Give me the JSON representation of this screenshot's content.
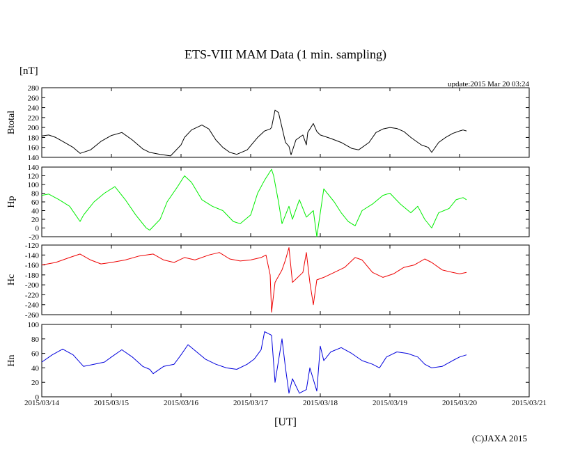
{
  "chart_data": {
    "type": "line",
    "title": "ETS-VIII MAM Data (1 min. sampling)",
    "unit_label": "[nT]",
    "update_label": "update:2015 Mar 20 03:24",
    "xlabel": "[UT]",
    "copyright": "(C)JAXA 2015",
    "x_ticks": [
      "2015/03/14",
      "2015/03/15",
      "2015/03/16",
      "2015/03/17",
      "2015/03/18",
      "2015/03/19",
      "2015/03/20",
      "2015/03/21"
    ],
    "x_range_days": [
      0,
      7
    ],
    "panels": [
      {
        "name": "Btotal",
        "label": "Btotal",
        "color": "#000000",
        "ylim": [
          140,
          280
        ],
        "y_ticks": [
          "280",
          "260",
          "240",
          "220",
          "200",
          "180",
          "160",
          "140"
        ],
        "x": [
          0,
          0.1,
          0.2,
          0.3,
          0.45,
          0.55,
          0.7,
          0.85,
          1.0,
          1.15,
          1.3,
          1.45,
          1.55,
          1.7,
          1.85,
          2.0,
          2.05,
          2.15,
          2.3,
          2.4,
          2.5,
          2.6,
          2.7,
          2.8,
          2.95,
          3.1,
          3.2,
          3.28,
          3.3,
          3.35,
          3.4,
          3.45,
          3.5,
          3.55,
          3.58,
          3.65,
          3.75,
          3.8,
          3.82,
          3.9,
          3.95,
          4.0,
          4.15,
          4.3,
          4.45,
          4.55,
          4.7,
          4.8,
          4.9,
          5.0,
          5.1,
          5.2,
          5.3,
          5.45,
          5.55,
          5.6,
          5.7,
          5.8,
          5.9,
          6.0,
          6.05,
          6.1
        ],
        "y": [
          183,
          185,
          180,
          172,
          160,
          148,
          155,
          172,
          184,
          190,
          175,
          157,
          150,
          146,
          143,
          165,
          180,
          195,
          205,
          197,
          175,
          160,
          150,
          146,
          155,
          180,
          193,
          197,
          200,
          235,
          230,
          200,
          170,
          162,
          145,
          175,
          185,
          165,
          190,
          208,
          192,
          185,
          178,
          170,
          158,
          155,
          170,
          190,
          197,
          200,
          198,
          192,
          180,
          165,
          160,
          150,
          170,
          180,
          188,
          193,
          195,
          193
        ]
      },
      {
        "name": "Hp",
        "label": "Hp",
        "color": "#00ee00",
        "ylim": [
          -20,
          140
        ],
        "y_ticks": [
          "140",
          "120",
          "100",
          "80",
          "60",
          "40",
          "20",
          "0",
          "-20"
        ],
        "x": [
          0,
          0.1,
          0.25,
          0.4,
          0.55,
          0.6,
          0.75,
          0.9,
          1.05,
          1.2,
          1.35,
          1.5,
          1.55,
          1.7,
          1.8,
          1.95,
          2.05,
          2.15,
          2.3,
          2.45,
          2.6,
          2.75,
          2.85,
          3.0,
          3.1,
          3.2,
          3.3,
          3.33,
          3.4,
          3.45,
          3.55,
          3.6,
          3.7,
          3.8,
          3.9,
          3.95,
          4.05,
          4.2,
          4.3,
          4.4,
          4.5,
          4.6,
          4.75,
          4.9,
          5.0,
          5.15,
          5.3,
          5.4,
          5.5,
          5.6,
          5.7,
          5.85,
          5.95,
          6.05,
          6.1
        ],
        "y": [
          75,
          78,
          65,
          50,
          15,
          30,
          60,
          80,
          95,
          65,
          30,
          0,
          -5,
          20,
          60,
          95,
          120,
          105,
          65,
          50,
          40,
          15,
          10,
          30,
          80,
          110,
          135,
          120,
          60,
          10,
          50,
          20,
          65,
          25,
          40,
          -20,
          90,
          60,
          35,
          15,
          5,
          40,
          55,
          75,
          80,
          55,
          35,
          50,
          20,
          0,
          35,
          45,
          65,
          70,
          65
        ]
      },
      {
        "name": "Hc",
        "label": "Hc",
        "color": "#ee0000",
        "ylim": [
          -260,
          -120
        ],
        "y_ticks": [
          "-120",
          "-140",
          "-160",
          "-180",
          "-200",
          "-220",
          "-240",
          "-260"
        ],
        "x": [
          0,
          0.2,
          0.4,
          0.55,
          0.7,
          0.85,
          1.0,
          1.2,
          1.4,
          1.6,
          1.75,
          1.9,
          2.05,
          2.2,
          2.4,
          2.55,
          2.7,
          2.85,
          3.0,
          3.15,
          3.22,
          3.28,
          3.3,
          3.35,
          3.45,
          3.5,
          3.55,
          3.6,
          3.75,
          3.8,
          3.85,
          3.9,
          3.95,
          4.05,
          4.2,
          4.35,
          4.5,
          4.6,
          4.75,
          4.9,
          5.05,
          5.2,
          5.35,
          5.5,
          5.6,
          5.75,
          5.9,
          6.0,
          6.1
        ],
        "y": [
          -160,
          -155,
          -145,
          -138,
          -150,
          -158,
          -155,
          -150,
          -142,
          -138,
          -150,
          -155,
          -145,
          -150,
          -140,
          -135,
          -148,
          -152,
          -150,
          -145,
          -140,
          -180,
          -255,
          -195,
          -170,
          -150,
          -125,
          -195,
          -175,
          -135,
          -195,
          -240,
          -190,
          -185,
          -175,
          -165,
          -145,
          -150,
          -175,
          -185,
          -178,
          -165,
          -160,
          -148,
          -155,
          -170,
          -175,
          -178,
          -175
        ]
      },
      {
        "name": "Hn",
        "label": "Hn",
        "color": "#0000dd",
        "ylim": [
          0,
          100
        ],
        "y_ticks": [
          "100",
          "80",
          "60",
          "40",
          "20",
          "0"
        ],
        "x": [
          0,
          0.15,
          0.3,
          0.45,
          0.6,
          0.75,
          0.9,
          1.0,
          1.15,
          1.3,
          1.45,
          1.55,
          1.6,
          1.75,
          1.9,
          2.0,
          2.1,
          2.25,
          2.35,
          2.5,
          2.65,
          2.8,
          2.95,
          3.05,
          3.15,
          3.2,
          3.3,
          3.35,
          3.45,
          3.5,
          3.55,
          3.6,
          3.7,
          3.8,
          3.85,
          3.95,
          4.0,
          4.05,
          4.15,
          4.3,
          4.45,
          4.6,
          4.75,
          4.85,
          4.95,
          5.1,
          5.25,
          5.4,
          5.5,
          5.6,
          5.75,
          5.9,
          6.0,
          6.1
        ],
        "y": [
          48,
          58,
          66,
          58,
          42,
          45,
          48,
          55,
          65,
          55,
          42,
          38,
          32,
          42,
          45,
          58,
          72,
          60,
          52,
          45,
          40,
          38,
          45,
          52,
          65,
          90,
          85,
          20,
          80,
          40,
          5,
          25,
          5,
          10,
          40,
          8,
          70,
          50,
          62,
          68,
          60,
          50,
          45,
          40,
          55,
          62,
          60,
          55,
          45,
          40,
          42,
          50,
          55,
          58
        ]
      }
    ]
  }
}
